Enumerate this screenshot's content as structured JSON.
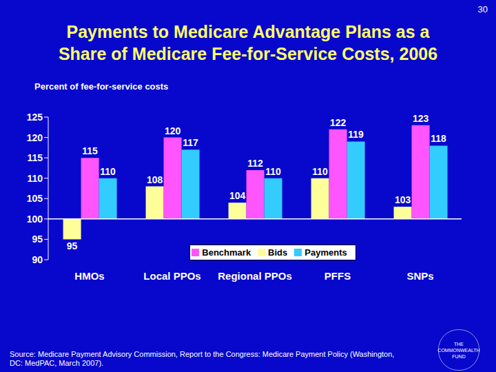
{
  "chart_data": {
    "type": "bar",
    "title": "Payments to Medicare Advantage Plans as a Share of Medicare Fee-for-Service Costs, 2006",
    "ylabel": "Percent of fee-for-service costs",
    "annotations": [
      "30",
      "Source: Medicare Payment Advisory Commission, Report to the Congress: Medicare Payment Policy (Washington, DC: MedPAC, March 2007).",
      "THE COMMONWEALTH FUND"
    ],
    "categories": [
      "HMOs",
      "Local PPOs",
      "Regional PPOs",
      "PFFS",
      "SNPs"
    ],
    "baseline": 100,
    "series": [
      {
        "name": "Bids",
        "color": "#ffff99",
        "values": [
          95,
          108,
          104,
          110,
          103
        ]
      },
      {
        "name": "Benchmark",
        "color": "#ff55ff",
        "values": [
          115,
          120,
          112,
          122,
          123
        ]
      },
      {
        "name": "Payments",
        "color": "#33ccff",
        "values": [
          110,
          117,
          110,
          119,
          118
        ]
      }
    ],
    "ylim": [
      90,
      125
    ],
    "yticks": [
      90,
      95,
      100,
      105,
      110,
      115,
      120,
      125
    ],
    "grid": false,
    "legend": "lower center",
    "data_labels": true
  }
}
